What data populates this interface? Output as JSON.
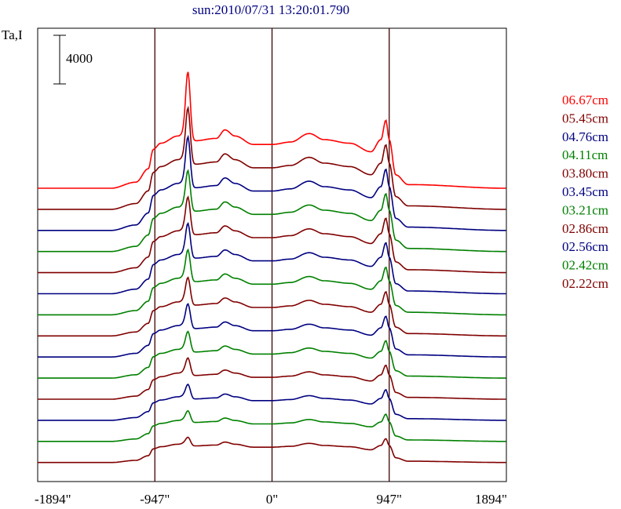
{
  "chart_data": {
    "type": "line",
    "title": "sun:2010/07/31 13:20:01.790",
    "ylabel": "Ta,I",
    "scale_bar_label": "4000",
    "x_tick_labels": [
      "-1894\"",
      "-947\"",
      "0\"",
      "947\"",
      "1894\""
    ],
    "x_ticks": [
      -1894,
      -947,
      0,
      947,
      1894
    ],
    "xlim": [
      -1894,
      1894
    ],
    "grid": false,
    "vertical_markers": [
      -947,
      0,
      947
    ],
    "legend_position": "right",
    "series": [
      {
        "name": "06.67cm",
        "color": "#ff0000",
        "offset": 0
      },
      {
        "name": "05.45cm",
        "color": "#800000",
        "offset": 1
      },
      {
        "name": "04.76cm",
        "color": "#000080",
        "offset": 2
      },
      {
        "name": "04.11cm",
        "color": "#008000",
        "offset": 3
      },
      {
        "name": "03.80cm",
        "color": "#800000",
        "offset": 4
      },
      {
        "name": "03.45cm",
        "color": "#000080",
        "offset": 5
      },
      {
        "name": "03.21cm",
        "color": "#008000",
        "offset": 6
      },
      {
        "name": "02.86cm",
        "color": "#800000",
        "offset": 7
      },
      {
        "name": "02.56cm",
        "color": "#000080",
        "offset": 8
      },
      {
        "name": "02.42cm",
        "color": "#008000",
        "offset": 9
      },
      {
        "name": "02.22cm",
        "color": "#800000",
        "offset": 10
      },
      {
        "color": "#000080",
        "offset": 11
      },
      {
        "color": "#008000",
        "offset": 12
      },
      {
        "color": "#800000",
        "offset": 13
      }
    ],
    "profile_shape": {
      "points": [
        [
          -1894,
          0
        ],
        [
          -1300,
          0
        ],
        [
          -1100,
          500
        ],
        [
          -1000,
          1600
        ],
        [
          -960,
          3200
        ],
        [
          -900,
          3700
        ],
        [
          -760,
          4300
        ],
        [
          -680,
          4800
        ],
        [
          -630,
          3900
        ],
        [
          -450,
          4100
        ],
        [
          -380,
          4800
        ],
        [
          -300,
          4300
        ],
        [
          -150,
          3600
        ],
        [
          0,
          3600
        ],
        [
          150,
          3800
        ],
        [
          300,
          4500
        ],
        [
          420,
          4000
        ],
        [
          630,
          3700
        ],
        [
          800,
          3000
        ],
        [
          880,
          4000
        ],
        [
          920,
          5600
        ],
        [
          947,
          4000
        ],
        [
          1000,
          1100
        ],
        [
          1100,
          300
        ],
        [
          1894,
          0
        ]
      ],
      "peak_x": -680,
      "peak_height_by_series": [
        4800,
        3800,
        3400,
        2600,
        2400,
        2200,
        2000,
        1700,
        1500,
        1200,
        1000,
        800,
        600,
        400
      ]
    }
  }
}
